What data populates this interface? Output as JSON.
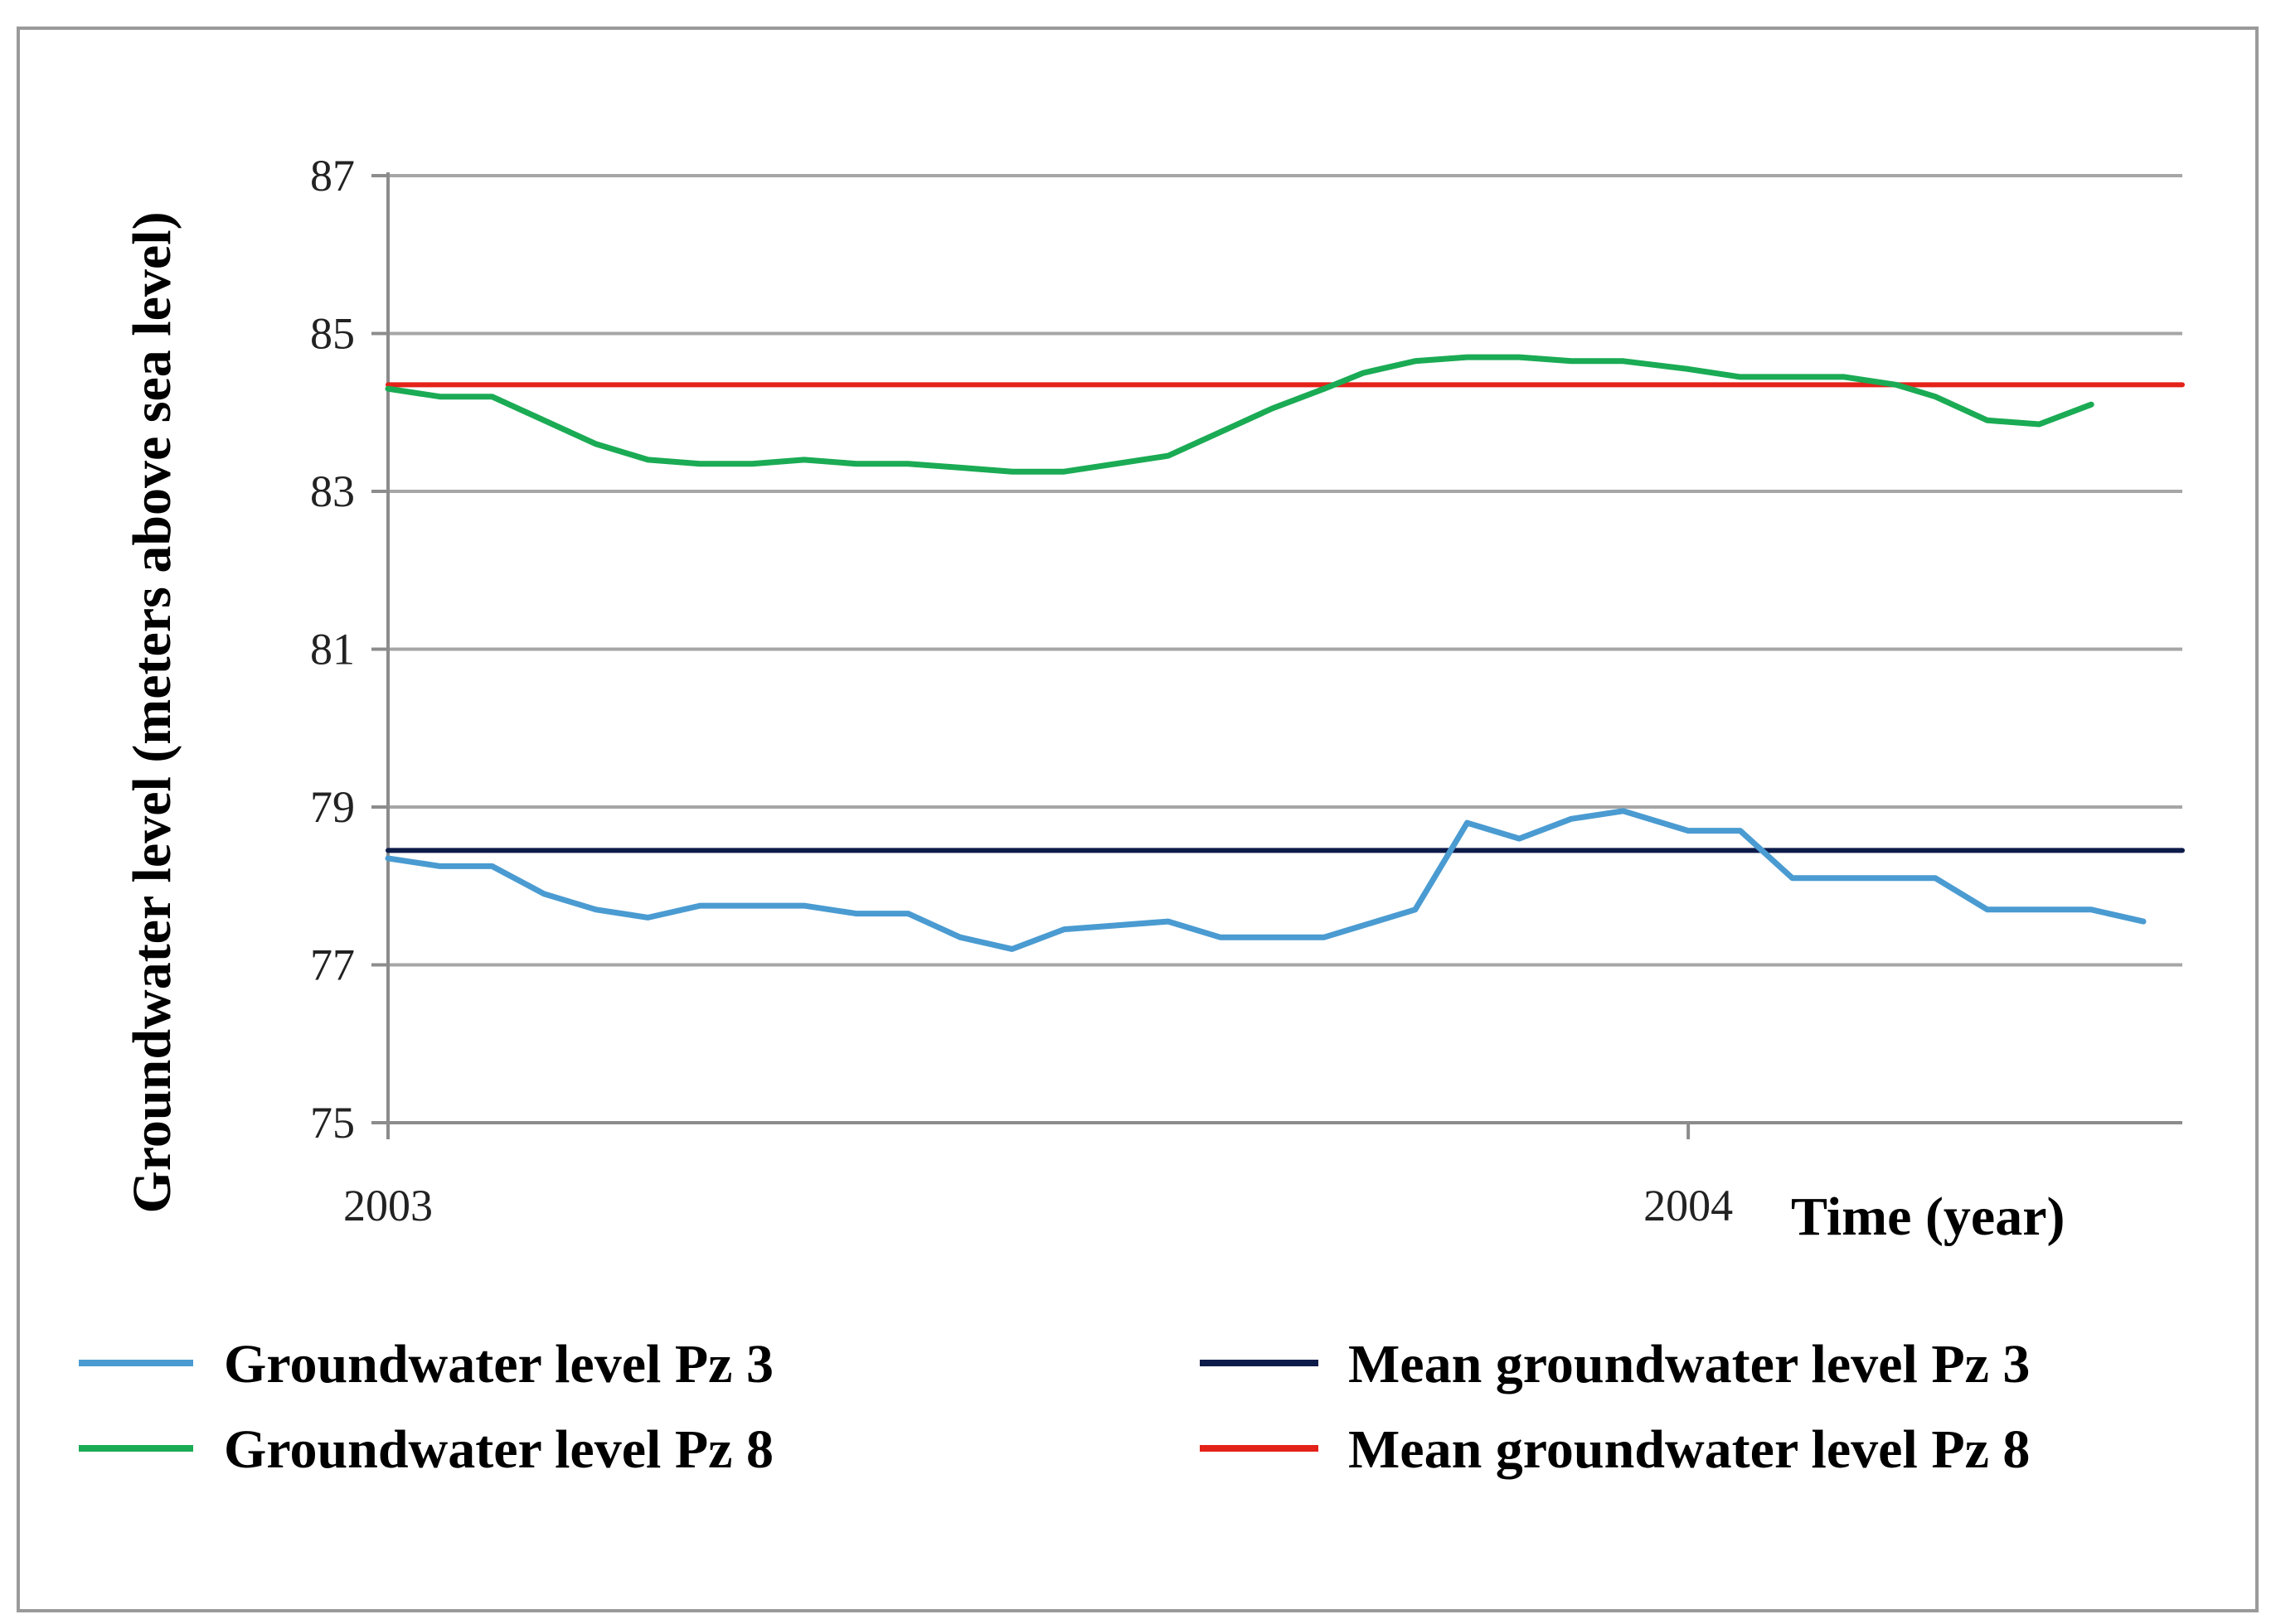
{
  "chart_data": {
    "type": "line",
    "title": "",
    "xlabel": "Time (year)",
    "ylabel": "Groundwater level (meters above sea level)",
    "xlim": [
      2003.0,
      2004.38
    ],
    "ylim": [
      75,
      87
    ],
    "yticks": [
      75,
      77,
      79,
      81,
      83,
      85,
      87
    ],
    "xticks": [
      {
        "value": 2003.0,
        "label": "2003"
      },
      {
        "value": 2004.0,
        "label": "2004"
      }
    ],
    "grid": true,
    "legend_position": "bottom",
    "series": [
      {
        "name": "Groundwater level Pz 3",
        "color": "#4a9bd1",
        "x": [
          2003.0,
          2003.04,
          2003.08,
          2003.12,
          2003.16,
          2003.2,
          2003.24,
          2003.28,
          2003.32,
          2003.36,
          2003.4,
          2003.44,
          2003.48,
          2003.52,
          2003.56,
          2003.6,
          2003.64,
          2003.68,
          2003.72,
          2003.75,
          2003.79,
          2003.83,
          2003.87,
          2003.91,
          2003.95,
          2004.0,
          2004.04,
          2004.08,
          2004.12,
          2004.16,
          2004.19,
          2004.23,
          2004.27,
          2004.31,
          2004.35
        ],
        "y": [
          78.35,
          78.25,
          78.25,
          77.9,
          77.7,
          77.6,
          77.75,
          77.75,
          77.75,
          77.65,
          77.65,
          77.35,
          77.2,
          77.45,
          77.5,
          77.55,
          77.35,
          77.35,
          77.35,
          77.5,
          77.7,
          78.8,
          78.6,
          78.85,
          78.95,
          78.7,
          78.7,
          78.1,
          78.1,
          78.1,
          78.1,
          77.7,
          77.7,
          77.7,
          77.55
        ]
      },
      {
        "name": "Groundwater level Pz 8",
        "color": "#1aab54",
        "x": [
          2003.0,
          2003.04,
          2003.08,
          2003.12,
          2003.16,
          2003.2,
          2003.24,
          2003.28,
          2003.32,
          2003.36,
          2003.4,
          2003.44,
          2003.48,
          2003.52,
          2003.56,
          2003.6,
          2003.64,
          2003.68,
          2003.72,
          2003.75,
          2003.79,
          2003.83,
          2003.87,
          2003.91,
          2003.95,
          2004.0,
          2004.04,
          2004.08,
          2004.12,
          2004.16,
          2004.19,
          2004.23,
          2004.27,
          2004.31
        ],
        "y": [
          84.3,
          84.2,
          84.2,
          83.9,
          83.6,
          83.4,
          83.35,
          83.35,
          83.4,
          83.35,
          83.35,
          83.3,
          83.25,
          83.25,
          83.35,
          83.45,
          83.75,
          84.05,
          84.3,
          84.5,
          84.65,
          84.7,
          84.7,
          84.65,
          84.65,
          84.55,
          84.45,
          84.45,
          84.45,
          84.35,
          84.2,
          83.9,
          83.85,
          84.1
        ]
      },
      {
        "name": "Mean groundwater level Pz 3",
        "color": "#0d1b4a",
        "x": [
          2003.0,
          2004.38
        ],
        "y": [
          78.45,
          78.45
        ]
      },
      {
        "name": "Mean groundwater level Pz 8",
        "color": "#e32219",
        "x": [
          2003.0,
          2004.38
        ],
        "y": [
          84.35,
          84.35
        ]
      }
    ]
  }
}
